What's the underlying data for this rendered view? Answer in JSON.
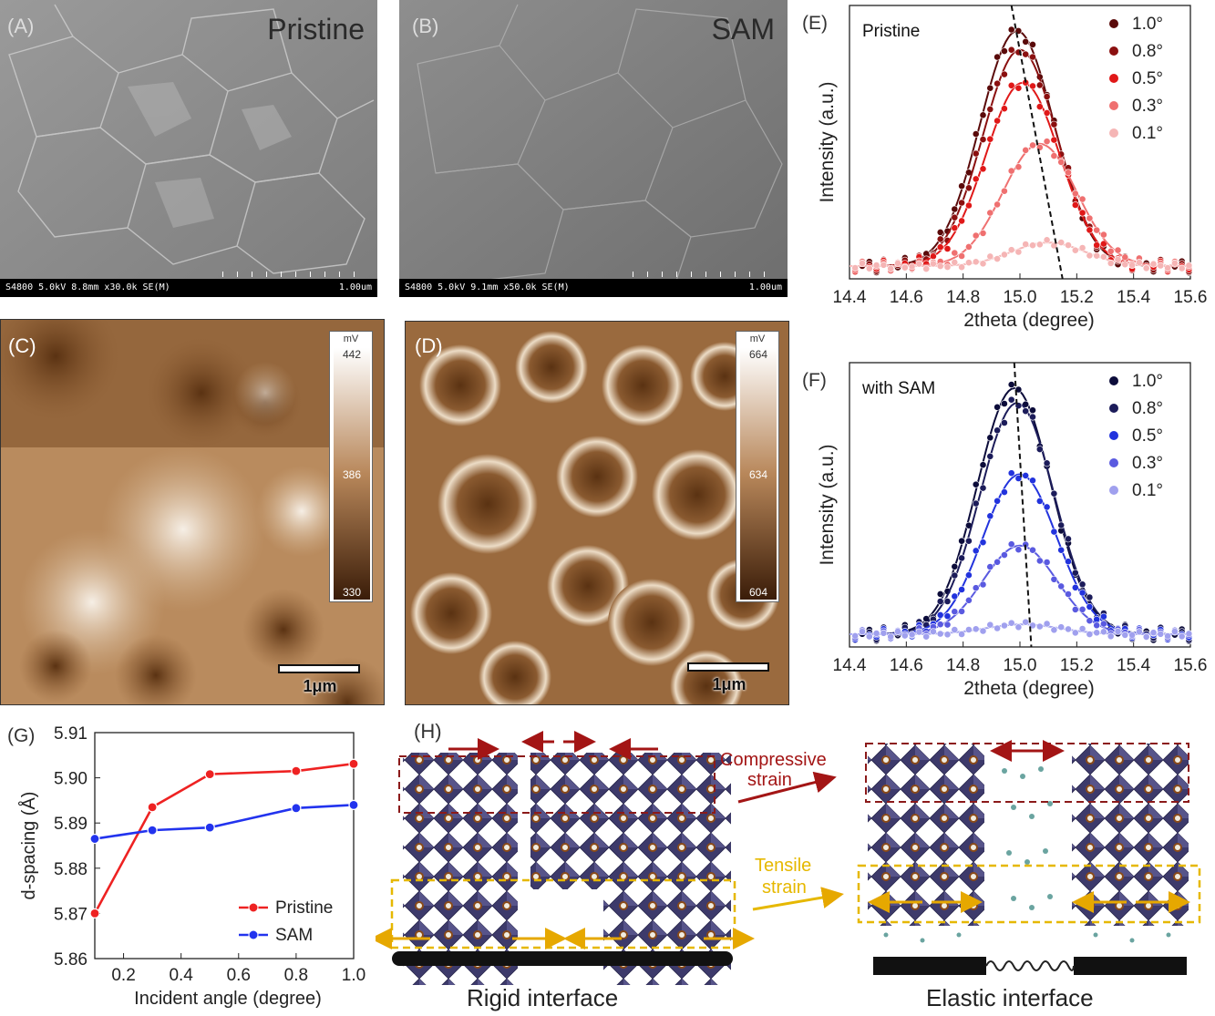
{
  "panels": {
    "A": {
      "label": "(A)",
      "title": "Pristine",
      "info": "S4800 5.0kV 8.8mm x30.0k SE(M)",
      "scale": "1.00um"
    },
    "B": {
      "label": "(B)",
      "title": "SAM",
      "info": "S4800 5.0kV 9.1mm x50.0k SE(M)",
      "scale": "1.00um"
    },
    "C": {
      "label": "(C)",
      "colorbar": {
        "unit": "mV",
        "max": "442",
        "mid": "386",
        "min": "330"
      },
      "scalebar": "1μm"
    },
    "D": {
      "label": "(D)",
      "colorbar": {
        "unit": "mV",
        "max": "664",
        "mid": "634",
        "min": "604"
      },
      "scalebar": "1μm"
    },
    "E": {
      "label": "(E)",
      "annotation": "Pristine"
    },
    "F": {
      "label": "(F)",
      "annotation": "with SAM"
    },
    "G": {
      "label": "(G)"
    },
    "H": {
      "label": "(H)",
      "compressive": "Compressive\nstrain",
      "tensile": "Tensile\nstrain",
      "rigid": "Rigid interface",
      "elastic": "Elastic interface"
    }
  },
  "colors": {
    "pristine_red": "#ee2222",
    "sam_blue": "#2233ee",
    "dark_red_border": "#8b1a1a",
    "yellow_border": "#e6b800",
    "octahedron": "#3d3a6b"
  },
  "chart_data": [
    {
      "id": "E",
      "type": "line",
      "xlabel": "2theta (degree)",
      "ylabel": "Intensity (a.u.)",
      "xlim": [
        14.4,
        15.6
      ],
      "xticks": [
        "14.4",
        "14.6",
        "14.8",
        "15.0",
        "15.2",
        "15.4",
        "15.6"
      ],
      "series": [
        {
          "name": "1.0°",
          "color": "#5a0a0a",
          "peak": 14.99,
          "amp": 1.0
        },
        {
          "name": "0.8°",
          "color": "#8b1010",
          "peak": 15.0,
          "amp": 0.92
        },
        {
          "name": "0.5°",
          "color": "#e01818",
          "peak": 15.01,
          "amp": 0.78
        },
        {
          "name": "0.3°",
          "color": "#ef7070",
          "peak": 15.07,
          "amp": 0.52
        },
        {
          "name": "0.1°",
          "color": "#f5b5b5",
          "peak": 15.1,
          "amp": 0.1
        }
      ],
      "guide_line": {
        "x_top": 14.97,
        "x_bottom": 15.15
      }
    },
    {
      "id": "F",
      "type": "line",
      "xlabel": "2theta (degree)",
      "ylabel": "Intensity (a.u.)",
      "xlim": [
        14.4,
        15.6
      ],
      "xticks": [
        "14.4",
        "14.6",
        "14.8",
        "15.0",
        "15.2",
        "15.4",
        "15.6"
      ],
      "series": [
        {
          "name": "1.0°",
          "color": "#0c0c3a",
          "peak": 14.98,
          "amp": 1.0
        },
        {
          "name": "0.8°",
          "color": "#1c1c5a",
          "peak": 14.99,
          "amp": 0.94
        },
        {
          "name": "0.5°",
          "color": "#2233dd",
          "peak": 15.0,
          "amp": 0.65
        },
        {
          "name": "0.3°",
          "color": "#5a5ae0",
          "peak": 15.0,
          "amp": 0.36
        },
        {
          "name": "0.1°",
          "color": "#a0a0ee",
          "peak": 15.01,
          "amp": 0.04
        }
      ],
      "guide_line": {
        "x_top": 14.98,
        "x_bottom": 15.04
      }
    },
    {
      "id": "G",
      "type": "line",
      "xlabel": "Incident angle (degree)",
      "ylabel": "d-spacing (Å)",
      "xlim": [
        0.1,
        1.0
      ],
      "ylim": [
        5.86,
        5.91
      ],
      "xticks": [
        "0.2",
        "0.4",
        "0.6",
        "0.8",
        "1.0"
      ],
      "yticks": [
        "5.86",
        "5.87",
        "5.88",
        "5.89",
        "5.90",
        "5.91"
      ],
      "x": [
        0.1,
        0.3,
        0.5,
        0.8,
        1.0
      ],
      "series": [
        {
          "name": "Pristine",
          "color": "#ee2222",
          "values": [
            5.87,
            5.8935,
            5.9008,
            5.9015,
            5.9031
          ]
        },
        {
          "name": "SAM",
          "color": "#2233ee",
          "values": [
            5.8865,
            5.8884,
            5.889,
            5.8933,
            5.894
          ]
        }
      ]
    }
  ]
}
